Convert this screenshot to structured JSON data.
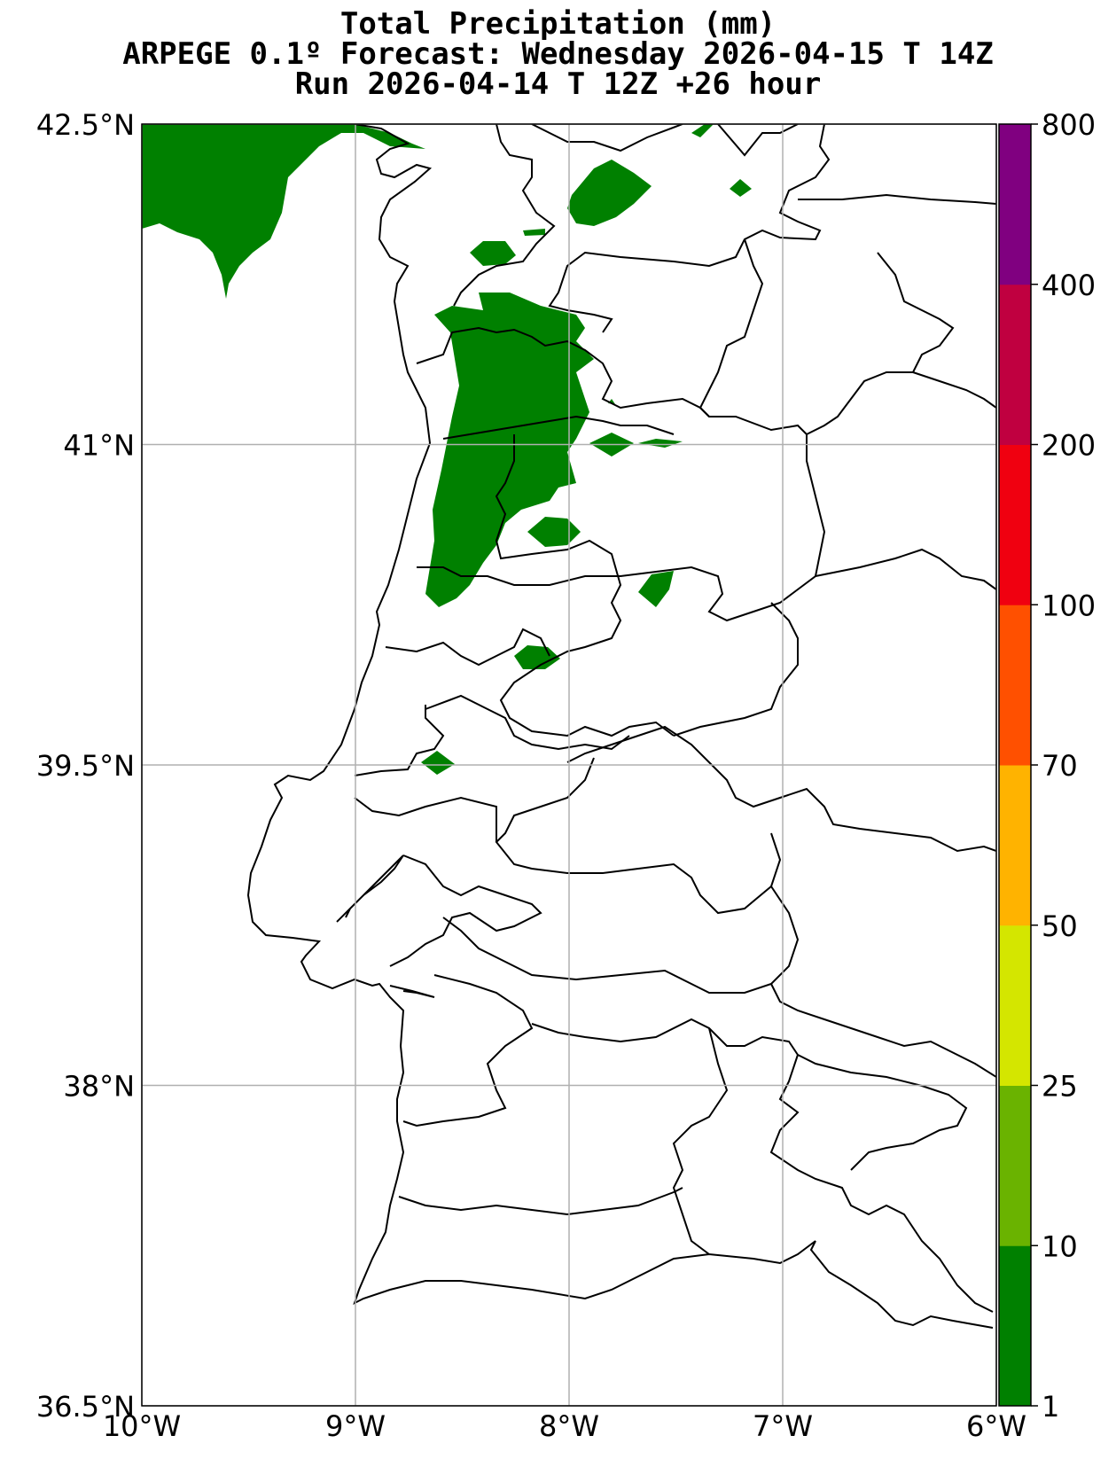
{
  "title": {
    "line1": "Total Precipitation (mm)",
    "line2": "ARPEGE 0.1º Forecast: Wednesday 2026-04-15 T 14Z",
    "line3": "Run 2026-04-14 T 12Z +26 hour"
  },
  "map": {
    "lon_range": [
      -10,
      -6
    ],
    "lat_range": [
      36.5,
      42.5
    ],
    "gridlines": true,
    "x_ticks": [
      {
        "value": -10,
        "label": "10°W"
      },
      {
        "value": -9,
        "label": "9°W"
      },
      {
        "value": -8,
        "label": "8°W"
      },
      {
        "value": -7,
        "label": "7°W"
      },
      {
        "value": -6,
        "label": "6°W"
      }
    ],
    "y_ticks": [
      {
        "value": 42.5,
        "label": "42.5°N"
      },
      {
        "value": 41,
        "label": "41°N"
      },
      {
        "value": 39.5,
        "label": "39.5°N"
      },
      {
        "value": 38,
        "label": "38°N"
      },
      {
        "value": 36.5,
        "label": "36.5°N"
      }
    ],
    "precip_color": "#008000",
    "coast_color": "#000000",
    "grid_color": "#b0b0b0"
  },
  "colorbar": {
    "levels": [
      "1",
      "10",
      "25",
      "50",
      "70",
      "100",
      "200",
      "400",
      "800"
    ],
    "colors": [
      "#008000",
      "#6ab300",
      "#d4e600",
      "#ffb300",
      "#ff5000",
      "#f00010",
      "#c00040",
      "#800080"
    ]
  }
}
